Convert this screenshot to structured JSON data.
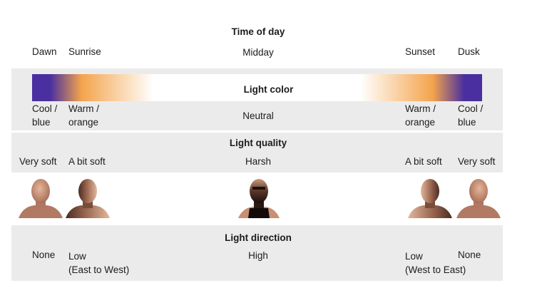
{
  "time_of_day": {
    "title": "Time of day",
    "phases": [
      "Dawn",
      "Sunrise",
      "Midday",
      "Sunset",
      "Dusk"
    ]
  },
  "light_color": {
    "title": "Light color",
    "values": [
      "Cool /\nblue",
      "Warm /\norange",
      "Neutral",
      "Warm /\norange",
      "Cool /\nblue"
    ],
    "gradient_colors": {
      "cool_blue": "#4a2fa0",
      "warm_orange": "#f4a44c",
      "neutral": "#ffffff"
    }
  },
  "light_quality": {
    "title": "Light quality",
    "values": [
      "Very soft",
      "A bit soft",
      "Harsh",
      "A bit soft",
      "Very soft"
    ]
  },
  "faces": [
    "face-very-soft",
    "face-bit-soft",
    "face-harsh",
    "face-bit-soft",
    "face-very-soft"
  ],
  "light_direction": {
    "title": "Light direction",
    "values": [
      "None",
      "Low\n(East to West)",
      "High",
      "Low\n(West to East)",
      "None"
    ]
  }
}
